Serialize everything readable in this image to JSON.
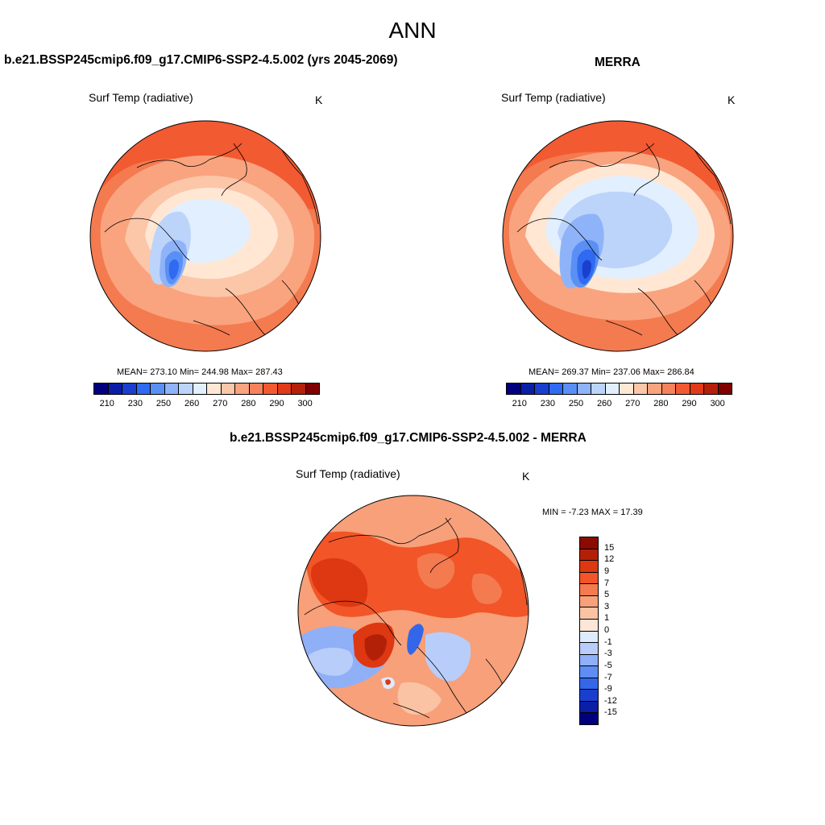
{
  "page": {
    "title": "ANN"
  },
  "panels": [
    {
      "id": "model",
      "title": "b.e21.BSSP245cmip6.f09_g17.CMIP6-SSP2-4.5.002 (yrs 2045-2069)",
      "variable": "Surf Temp (radiative)",
      "units": "K",
      "stats": "MEAN= 273.10  Min= 244.98  Max= 287.43"
    },
    {
      "id": "obs",
      "title": "MERRA",
      "variable": "Surf Temp (radiative)",
      "units": "K",
      "stats": "MEAN= 269.37  Min= 237.06  Max= 286.84"
    },
    {
      "id": "diff",
      "title": "b.e21.BSSP245cmip6.f09_g17.CMIP6-SSP2-4.5.002 - MERRA",
      "variable": "Surf Temp (radiative)",
      "units": "K",
      "stats": "MIN =  -7.23 MAX =  17.39"
    }
  ],
  "colorbars": {
    "absolute": {
      "tick_labels": [
        "210",
        "230",
        "250",
        "260",
        "270",
        "280",
        "290",
        "300"
      ],
      "colors": [
        "#00007f",
        "#0a1fa6",
        "#1a3fcf",
        "#2f6af0",
        "#5a90f5",
        "#8fb3f8",
        "#bcd4fa",
        "#e2efff",
        "#ffe7d4",
        "#fcc6a8",
        "#f9a47f",
        "#f5825a",
        "#f25a32",
        "#e03a18",
        "#b5200a",
        "#7f0000"
      ]
    },
    "difference": {
      "tick_labels": [
        "15",
        "12",
        "9",
        "7",
        "5",
        "3",
        "1",
        "0",
        "-1",
        "-3",
        "-5",
        "-7",
        "-9",
        "-12",
        "-15"
      ],
      "colors": [
        "#8a0b00",
        "#b32008",
        "#dd3812",
        "#f25528",
        "#f47a50",
        "#f7a07a",
        "#fac3a3",
        "#fde6d8",
        "#ddeaff",
        "#b8cdfa",
        "#8fb0f7",
        "#5f8df3",
        "#3466ea",
        "#1a3fcf",
        "#0a1fa6",
        "#00007f"
      ]
    }
  }
}
